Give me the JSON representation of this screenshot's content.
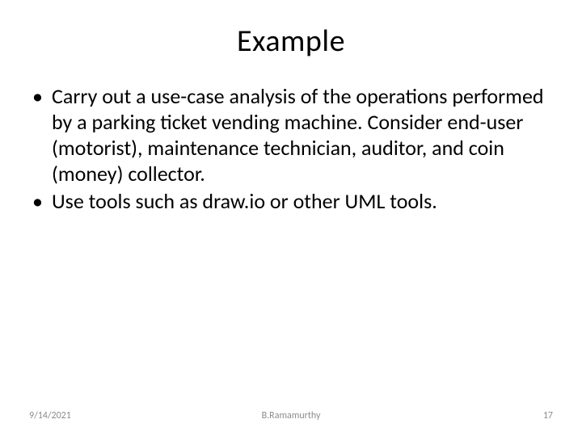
{
  "slide": {
    "title": "Example",
    "bullets": [
      "Carry out a use-case analysis of the operations performed by a parking ticket vending machine. Consider end-user (motorist), maintenance technician, auditor, and coin (money)  collector.",
      "Use tools such as draw.io or other UML tools."
    ],
    "footer": {
      "date": "9/14/2021",
      "author": "B.Ramamurthy",
      "page": "17"
    },
    "style": {
      "background_color": "#ffffff",
      "title_fontsize_pt": 38,
      "body_fontsize_pt": 26,
      "footer_fontsize_pt": 12,
      "text_color": "#000000",
      "footer_color": "#8c8c8c",
      "font_family": "Calibri"
    }
  }
}
